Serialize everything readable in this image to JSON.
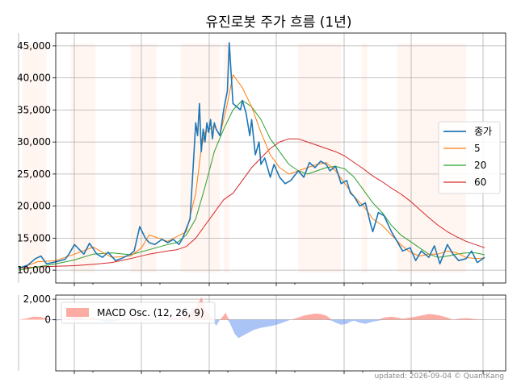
{
  "chart_data": [
    {
      "type": "line",
      "title": "유진로봇 주가 흐름 (1년)",
      "ylim": [
        8000,
        47000
      ],
      "yticks": [
        10000,
        15000,
        20000,
        25000,
        30000,
        35000,
        40000,
        45000
      ],
      "ytick_labels": [
        "10,000",
        "15,000",
        "20,000",
        "25,000",
        "30,000",
        "35,000",
        "40,000",
        "45,000"
      ],
      "xlim": [
        0,
        250
      ],
      "grid": true,
      "legend_position": "right",
      "shaded_bands": [
        [
          2,
          15
        ],
        [
          28,
          41
        ],
        [
          60,
          74
        ],
        [
          87,
          108
        ],
        [
          110,
          113
        ],
        [
          150,
          173
        ],
        [
          184,
          187
        ],
        [
          203,
          240
        ]
      ],
      "series": [
        {
          "name": "종가",
          "color": "#1f77b4",
          "x": [
            0,
            5,
            9,
            12,
            15,
            20,
            25,
            27,
            30,
            35,
            38,
            42,
            45,
            48,
            52,
            55,
            60,
            62,
            65,
            68,
            70,
            73,
            77,
            80,
            83,
            86,
            88,
            92,
            94,
            95,
            96,
            97,
            98,
            99,
            100,
            101,
            102,
            103,
            104,
            105,
            106,
            108,
            110,
            112,
            113,
            115,
            117,
            119,
            120,
            122,
            124,
            125,
            127,
            129,
            130,
            132,
            135,
            137,
            140,
            143,
            146,
            150,
            153,
            156,
            159,
            162,
            165,
            167,
            170,
            173,
            176,
            178,
            180,
            183,
            186,
            189,
            190,
            193,
            196,
            200,
            203,
            206,
            210,
            213,
            216,
            220,
            223,
            226,
            230,
            233,
            236,
            240,
            243,
            246,
            250
          ],
          "y": [
            10300,
            10800,
            11800,
            12200,
            11000,
            11300,
            11700,
            12500,
            14000,
            12500,
            14200,
            12500,
            12000,
            12800,
            11500,
            11800,
            12500,
            13000,
            16800,
            15000,
            14300,
            14000,
            14800,
            14300,
            14800,
            14000,
            15000,
            18000,
            28000,
            33000,
            31000,
            36000,
            28500,
            32000,
            30000,
            33000,
            31500,
            33500,
            30500,
            33000,
            32000,
            31000,
            35000,
            38000,
            45500,
            36000,
            35500,
            35000,
            36500,
            34500,
            31000,
            33500,
            28000,
            30000,
            26500,
            27500,
            24500,
            26500,
            24500,
            23500,
            24000,
            25500,
            24500,
            26800,
            26000,
            27000,
            26500,
            25500,
            26200,
            23500,
            24000,
            22000,
            21500,
            20000,
            20500,
            17000,
            16000,
            19000,
            18500,
            16000,
            14500,
            13000,
            13500,
            11500,
            13000,
            12000,
            13800,
            11000,
            14000,
            12500,
            11500,
            11800,
            13000,
            11200,
            12000
          ]
        },
        {
          "name": "5",
          "color": "#ff7f0e",
          "x": [
            0,
            10,
            20,
            30,
            40,
            50,
            60,
            66,
            70,
            80,
            90,
            95,
            98,
            100,
            105,
            108,
            112,
            115,
            120,
            125,
            130,
            135,
            140,
            145,
            150,
            155,
            160,
            165,
            170,
            175,
            180,
            185,
            190,
            195,
            200,
            205,
            210,
            215,
            220,
            225,
            230,
            235,
            240,
            245,
            250
          ],
          "y": [
            10200,
            11300,
            11500,
            12500,
            13600,
            12000,
            12200,
            13500,
            15500,
            14500,
            16000,
            22000,
            29000,
            31500,
            32500,
            31000,
            36000,
            40500,
            38500,
            35500,
            31500,
            28000,
            26000,
            25000,
            25500,
            26000,
            26500,
            26800,
            25500,
            23500,
            21500,
            20000,
            18000,
            17000,
            15500,
            14000,
            12800,
            12200,
            12500,
            12500,
            13000,
            12700,
            12000,
            11800,
            11900
          ]
        },
        {
          "name": "20",
          "color": "#2ca02c",
          "x": [
            0,
            10,
            20,
            30,
            40,
            50,
            60,
            70,
            80,
            85,
            90,
            95,
            100,
            105,
            110,
            115,
            120,
            125,
            130,
            135,
            140,
            145,
            150,
            155,
            160,
            165,
            170,
            175,
            180,
            185,
            190,
            195,
            200,
            205,
            210,
            215,
            220,
            225,
            230,
            235,
            240,
            245,
            250
          ],
          "y": [
            10000,
            10500,
            11000,
            11600,
            12500,
            12700,
            12400,
            13200,
            14000,
            14300,
            15500,
            18000,
            23000,
            28500,
            32000,
            35000,
            36500,
            35500,
            33500,
            30500,
            28500,
            26500,
            25500,
            25000,
            25500,
            26000,
            26200,
            25800,
            24500,
            22500,
            20500,
            19000,
            17000,
            15500,
            14500,
            13500,
            12500,
            12000,
            12200,
            12500,
            12700,
            12700,
            12400
          ]
        },
        {
          "name": "60",
          "color": "#d62728",
          "x": [
            0,
            10,
            20,
            30,
            40,
            50,
            60,
            70,
            80,
            85,
            90,
            95,
            100,
            105,
            110,
            115,
            120,
            125,
            130,
            135,
            140,
            145,
            150,
            155,
            160,
            165,
            170,
            175,
            180,
            185,
            190,
            195,
            200,
            205,
            210,
            215,
            220,
            225,
            230,
            235,
            240,
            245,
            250
          ],
          "y": [
            10300,
            10500,
            10600,
            10700,
            10900,
            11200,
            11800,
            12500,
            13000,
            13200,
            13700,
            15000,
            17000,
            19000,
            21000,
            22000,
            24000,
            26000,
            27500,
            29000,
            30000,
            30500,
            30500,
            30000,
            29500,
            29000,
            28500,
            27800,
            26800,
            25800,
            24700,
            23800,
            22800,
            21900,
            20800,
            19500,
            18200,
            17000,
            16000,
            15200,
            14500,
            14000,
            13500
          ]
        }
      ]
    },
    {
      "type": "area",
      "ylim": [
        -5000,
        2400
      ],
      "yticks": [
        0,
        2000
      ],
      "ytick_labels": [
        "0",
        "2,000"
      ],
      "xlim": [
        0,
        250
      ],
      "grid": true,
      "legend_position": "top-left",
      "pos_color": "#fa8072",
      "neg_color": "#6495ed",
      "series": [
        {
          "name": "MACD Osc. (12, 26, 9)",
          "x": [
            0,
            5,
            8,
            12,
            15,
            18,
            20,
            22,
            25,
            28,
            30,
            33,
            35,
            38,
            40,
            42,
            45,
            48,
            50,
            52,
            55,
            58,
            60,
            62,
            64,
            66,
            68,
            70,
            72,
            75,
            78,
            80,
            83,
            86,
            88,
            90,
            92,
            94,
            95,
            96,
            97,
            98,
            99,
            100,
            101,
            102,
            103,
            104,
            105,
            106,
            107,
            108,
            110,
            111,
            112,
            113,
            114,
            115,
            116,
            118,
            120,
            122,
            124,
            126,
            128,
            130,
            133,
            136,
            140,
            143,
            146,
            150,
            153,
            156,
            159,
            162,
            165,
            168,
            170,
            173,
            176,
            178,
            180,
            183,
            186,
            190,
            193,
            196,
            200,
            203,
            206,
            210,
            213,
            216,
            220,
            223,
            226,
            230,
            233,
            236,
            240,
            243,
            246,
            250
          ],
          "y": [
            0,
            150,
            300,
            250,
            100,
            -50,
            -80,
            -40,
            100,
            200,
            350,
            250,
            100,
            150,
            300,
            100,
            -150,
            -250,
            -200,
            -150,
            0,
            100,
            150,
            200,
            100,
            0,
            -50,
            -100,
            -80,
            -50,
            0,
            100,
            200,
            150,
            250,
            400,
            800,
            1200,
            900,
            1600,
            1800,
            2200,
            1700,
            1200,
            800,
            600,
            300,
            100,
            -300,
            -600,
            -300,
            0,
            400,
            700,
            300,
            -200,
            -600,
            -1000,
            -1400,
            -1800,
            -1600,
            -1400,
            -1200,
            -1000,
            -900,
            -800,
            -700,
            -600,
            -400,
            -200,
            0,
            200,
            400,
            500,
            600,
            550,
            400,
            -100,
            -300,
            -500,
            -400,
            -200,
            -100,
            -300,
            -400,
            -200,
            -100,
            200,
            300,
            200,
            100,
            200,
            300,
            400,
            550,
            500,
            400,
            200,
            0,
            100,
            150,
            100,
            50,
            0
          ]
        }
      ]
    }
  ],
  "footer": "updated: 2026-09-04 © QuantKang"
}
